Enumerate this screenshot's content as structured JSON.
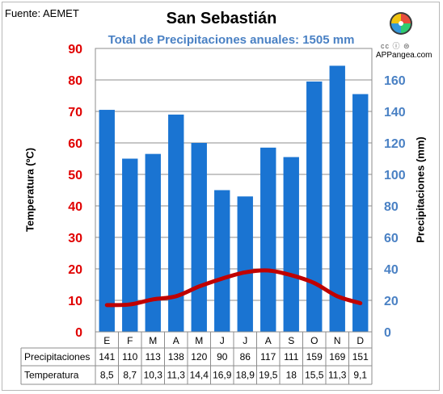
{
  "header": {
    "source": "Fuente: AEMET",
    "title": "San Sebastián",
    "subtitle": "Total de Precipitaciones anuales: 1505 mm",
    "cc_text": "cc ⓘ ⊜",
    "brand": "APPangea.com",
    "logo_icon": "puzzle-globe-icon"
  },
  "colors": {
    "bars": "#1a74d2",
    "line": "#c00000",
    "left_ticks": "#e00000",
    "right_ticks": "#4a81c4"
  },
  "chart_data": {
    "type": "bar",
    "title": "San Sebastián",
    "subtitle": "Total de Precipitaciones anuales: 1505 mm",
    "categories": [
      "E",
      "F",
      "M",
      "A",
      "M",
      "J",
      "J",
      "A",
      "S",
      "O",
      "N",
      "D"
    ],
    "y_left": {
      "label": "Temperatura (ºC)",
      "range": [
        0,
        90
      ],
      "ticks": [
        0,
        10,
        20,
        30,
        40,
        50,
        60,
        70,
        80,
        90
      ]
    },
    "y_right": {
      "label": "Precipitaciones (mm)",
      "range": [
        0,
        180
      ],
      "ticks": [
        0,
        20,
        40,
        60,
        80,
        100,
        120,
        140,
        160
      ]
    },
    "grid": true,
    "series": [
      {
        "name": "Precipitaciones",
        "type": "bar",
        "axis": "right",
        "values": [
          141,
          110,
          113,
          138,
          120,
          90,
          86,
          117,
          111,
          159,
          169,
          151
        ],
        "labels": [
          "141",
          "110",
          "113",
          "138",
          "120",
          "90",
          "86",
          "117",
          "111",
          "159",
          "169",
          "151"
        ]
      },
      {
        "name": "Temperatura",
        "type": "line",
        "axis": "left",
        "values": [
          8.5,
          8.7,
          10.3,
          11.3,
          14.4,
          16.9,
          18.9,
          19.5,
          18,
          15.5,
          11.3,
          9.1
        ],
        "labels": [
          "8,5",
          "8,7",
          "10,3",
          "11,3",
          "14,4",
          "16,9",
          "18,9",
          "19,5",
          "18",
          "15,5",
          "11,3",
          "9,1"
        ]
      }
    ]
  }
}
